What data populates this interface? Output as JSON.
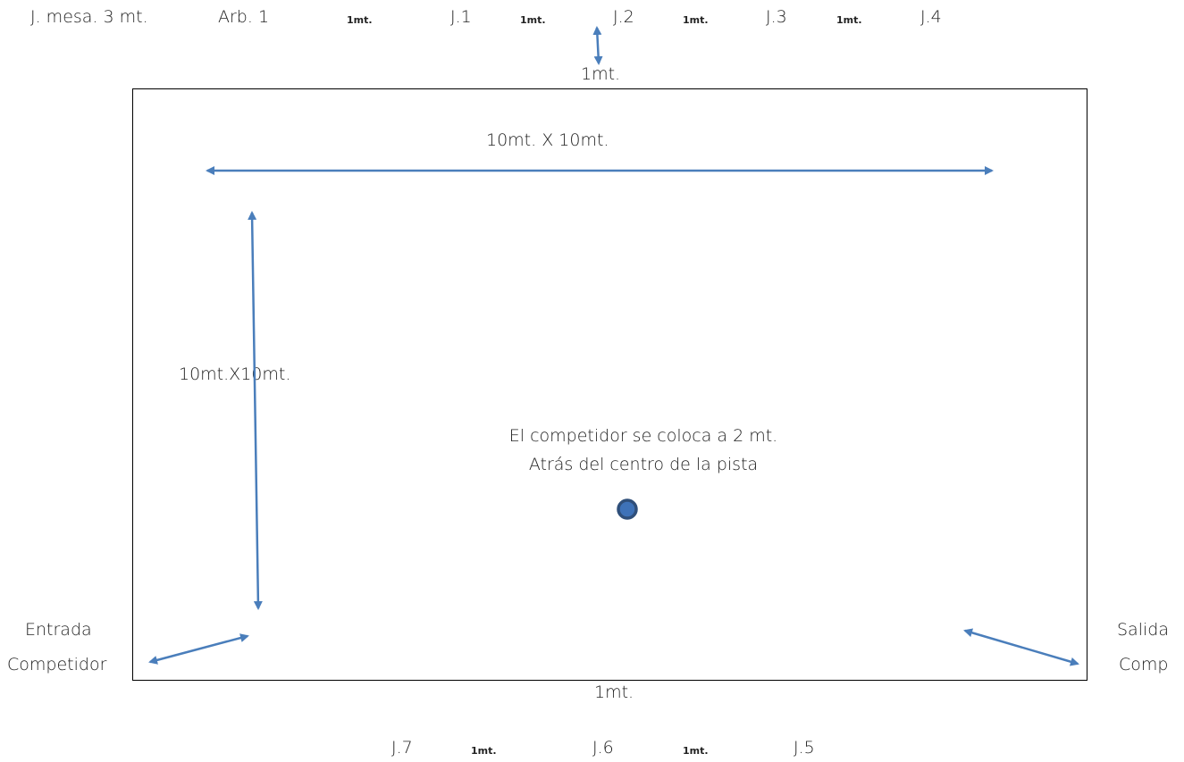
{
  "top_row": {
    "j_mesa": "J. mesa. 3 mt.",
    "arb": "Arb. 1",
    "gap1": "1mt.",
    "j1": "J.1",
    "gap2": "1mt.",
    "j2": "J.2",
    "gap3": "1mt.",
    "j3": "J.3",
    "gap4": "1mt.",
    "j4": "J.4"
  },
  "top_gap_label": "1mt.",
  "court": {
    "size_horizontal": "10mt. X 10mt.",
    "size_vertical": "10mt.X10mt.",
    "center_line1": "El competidor se coloca a 2 mt.",
    "center_line2": "Atrás del centro de la pista"
  },
  "entrada": {
    "line1": "Entrada",
    "line2": "Competidor"
  },
  "salida": {
    "line1": "Salida",
    "line2": "Comp"
  },
  "bottom_gap_label": "1mt.",
  "bottom_row": {
    "j7": "J.7",
    "gap1": "1mt.",
    "j6": "J.6",
    "gap2": "1mt.",
    "j5": "J.5"
  },
  "colors": {
    "arrow": "#4a7ebb",
    "dot_fill": "#3e72b8",
    "dot_stroke": "#2f4f7a"
  }
}
